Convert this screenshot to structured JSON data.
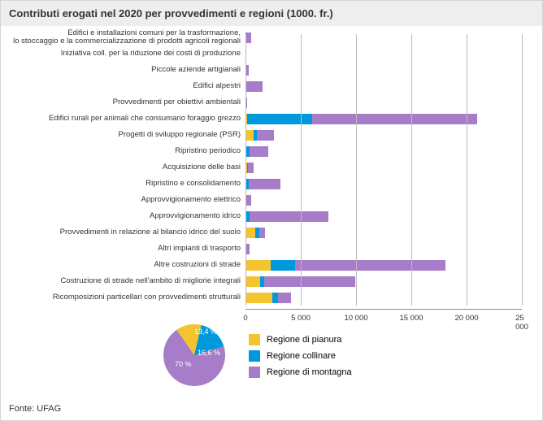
{
  "title": "Contributi erogati nel 2020 per provvedimenti e regioni (1000. fr.)",
  "source": "Fonte: UFAG",
  "colors": {
    "pianura": "#f4c430",
    "collinare": "#0099dd",
    "montagna": "#a77cc9",
    "grid": "#bbbbbb",
    "bg": "#ffffff",
    "titlebg": "#eeeeee"
  },
  "axis": {
    "min": 0,
    "max": 25000,
    "ticks": [
      0,
      5000,
      10000,
      15000,
      20000,
      25000
    ],
    "tick_labels": [
      "0",
      "5 000",
      "10 000",
      "15 000",
      "20 000",
      "25 000"
    ]
  },
  "legend": [
    {
      "key": "pianura",
      "label": "Regione di pianura"
    },
    {
      "key": "collinare",
      "label": "Regione collinare"
    },
    {
      "key": "montagna",
      "label": "Regione di montagna"
    }
  ],
  "pie": {
    "slices": [
      {
        "key": "pianura",
        "pct": 13.4,
        "label": "13,4 %"
      },
      {
        "key": "collinare",
        "pct": 16.6,
        "label": "16,6 %"
      },
      {
        "key": "montagna",
        "pct": 70.0,
        "label": "70 %"
      }
    ]
  },
  "rows": [
    {
      "label": "Edifici e installazioni comuni per la trasformazione,\nlo stoccaggio e la commercializzazione di prodotti agricoli regionali",
      "v": {
        "pianura": 30,
        "collinare": 40,
        "montagna": 460
      }
    },
    {
      "label": "Iniziativa coll. per la riduzione dei costi di produzione",
      "v": {
        "pianura": 0,
        "collinare": 0,
        "montagna": 100
      }
    },
    {
      "label": "Piccole aziende artigianali",
      "v": {
        "pianura": 0,
        "collinare": 0,
        "montagna": 310
      }
    },
    {
      "label": "Edifici alpestri",
      "v": {
        "pianura": 0,
        "collinare": 0,
        "montagna": 1560
      }
    },
    {
      "label": "Provvedimenti per obiettivi ambientali",
      "v": {
        "pianura": 80,
        "collinare": 30,
        "montagna": 20
      }
    },
    {
      "label": "Edifici rurali per animali che consumano foraggio grezzo",
      "v": {
        "pianura": 150,
        "collinare": 5900,
        "montagna": 14900
      }
    },
    {
      "label": "Progetti di sviluppo regionale (PSR)",
      "v": {
        "pianura": 770,
        "collinare": 280,
        "montagna": 1520
      }
    },
    {
      "label": "Ripristino periodico",
      "v": {
        "pianura": 40,
        "collinare": 310,
        "montagna": 1720
      }
    },
    {
      "label": "Acquisizione delle basi",
      "v": {
        "pianura": 160,
        "collinare": 80,
        "montagna": 470
      }
    },
    {
      "label": "Ripristino e consolidamento",
      "v": {
        "pianura": 60,
        "collinare": 200,
        "montagna": 2880
      }
    },
    {
      "label": "Approvvigionamento elettrico",
      "v": {
        "pianura": 0,
        "collinare": 0,
        "montagna": 550
      }
    },
    {
      "label": "Approvvigionamento idrico",
      "v": {
        "pianura": 80,
        "collinare": 320,
        "montagna": 7110
      }
    },
    {
      "label": "Provvedimenti in relazione al bilancio idrico del suolo",
      "v": {
        "pianura": 900,
        "collinare": 320,
        "montagna": 560
      }
    },
    {
      "label": "Altri impianti di trasporto",
      "v": {
        "pianura": 0,
        "collinare": 0,
        "montagna": 360
      }
    },
    {
      "label": "Altre costruzioni di strade",
      "v": {
        "pianura": 2270,
        "collinare": 2240,
        "montagna": 13550
      }
    },
    {
      "label": "Costruzione di strade nell'ambito di migliorie integrali",
      "v": {
        "pianura": 1360,
        "collinare": 350,
        "montagna": 8220
      }
    },
    {
      "label": "Ricomposizioni particellari con provvedimenti strutturali",
      "v": {
        "pianura": 2430,
        "collinare": 510,
        "montagna": 1170
      }
    }
  ]
}
